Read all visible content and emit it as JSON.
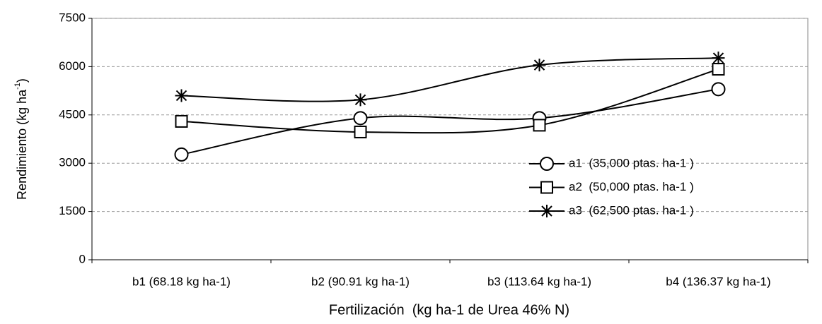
{
  "chart_data": {
    "type": "line",
    "x_label": "Fertilización  (kg ha-1 de Urea 46% N)",
    "y_label": [
      "Rendimiento (kg ha",
      "-1",
      ")"
    ],
    "categories": [
      "b1 (68.18 kg ha-1)",
      "b2 (90.91 kg ha-1)",
      "b3 (113.64 kg ha-1)",
      "b4 (136.37 kg ha-1)"
    ],
    "series": [
      {
        "name": "a1  (35,000 ptas. ha-1 )",
        "color": "#000000",
        "marker": "circle",
        "values": [
          3270,
          4400,
          4400,
          5300
        ]
      },
      {
        "name": "a2  (50,000 ptas. ha-1 )",
        "color": "#000000",
        "marker": "square",
        "values": [
          4300,
          3970,
          4180,
          5920
        ]
      },
      {
        "name": "a3  (62,500 ptas. ha-1 )",
        "color": "#000000",
        "marker": "star",
        "values": [
          5100,
          4970,
          6050,
          6270
        ]
      }
    ],
    "ylim": [
      0,
      7500
    ],
    "yticks": [
      0,
      1500,
      3000,
      4500,
      6000,
      7500
    ],
    "grid": true,
    "smooth": true,
    "legend": "right"
  }
}
